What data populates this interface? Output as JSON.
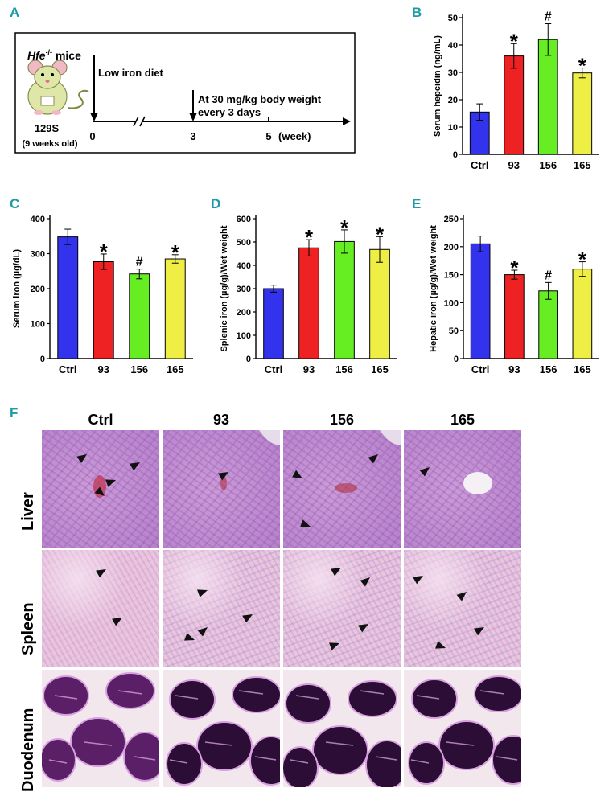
{
  "panels": {
    "a": "A",
    "b": "B",
    "c": "C",
    "d": "D",
    "e": "E",
    "f": "F"
  },
  "schematic": {
    "mouse_gene": "Hfe",
    "mouse_gene_sup": "-/-",
    "mouse_suffix": " mice",
    "strain": "129S",
    "age": "(9 weeks old)",
    "event1": "Low iron diet",
    "event2_line1": "At 30 mg/kg body weight",
    "event2_line2": "every 3 days",
    "ticks": [
      "0",
      "3",
      "5"
    ],
    "unit": "(week)"
  },
  "colors": {
    "ctrl": "#3333ee",
    "g93": "#ee2222",
    "g156": "#66ee22",
    "g165": "#eeee44"
  },
  "chart_data": [
    {
      "panel": "B",
      "type": "bar",
      "categories": [
        "Ctrl",
        "93",
        "156",
        "165"
      ],
      "values": [
        15.5,
        36,
        42,
        29.8
      ],
      "errors": [
        3,
        4.5,
        5.8,
        1.8
      ],
      "markers": [
        "",
        "*",
        "#",
        "*"
      ],
      "ylabel": "Serum hepcidin (ng/mL)",
      "ylim": [
        0,
        50
      ],
      "yticks": [
        0,
        10,
        20,
        30,
        40,
        50
      ]
    },
    {
      "panel": "C",
      "type": "bar",
      "categories": [
        "Ctrl",
        "93",
        "156",
        "165"
      ],
      "values": [
        348,
        277,
        242,
        285
      ],
      "errors": [
        22,
        22,
        14,
        12
      ],
      "markers": [
        "",
        "*",
        "#",
        "*"
      ],
      "ylabel": "Serum iron (µg/dL)",
      "ylim": [
        0,
        400
      ],
      "yticks": [
        0,
        100,
        200,
        300,
        400
      ]
    },
    {
      "panel": "D",
      "type": "bar",
      "categories": [
        "Ctrl",
        "93",
        "156",
        "165"
      ],
      "values": [
        300,
        475,
        502,
        468
      ],
      "errors": [
        15,
        35,
        50,
        55
      ],
      "markers": [
        "",
        "*",
        "*",
        "*"
      ],
      "ylabel": "Splenic iron (µg/g)/Wet weight",
      "ylim": [
        0,
        600
      ],
      "yticks": [
        0,
        100,
        200,
        300,
        400,
        500,
        600
      ]
    },
    {
      "panel": "E",
      "type": "bar",
      "categories": [
        "Ctrl",
        "93",
        "156",
        "165"
      ],
      "values": [
        205,
        150,
        121,
        160
      ],
      "errors": [
        14,
        8,
        15,
        13
      ],
      "markers": [
        "",
        "*",
        "#",
        "*"
      ],
      "ylabel": "Hepatic iron (µg/g)/Wet weight",
      "ylim": [
        0,
        250
      ],
      "yticks": [
        0,
        50,
        100,
        150,
        200,
        250
      ]
    }
  ],
  "histology": {
    "columns": [
      "Ctrl",
      "93",
      "156",
      "165"
    ],
    "rows": [
      "Liver",
      "Spleen",
      "Duodenum"
    ]
  }
}
